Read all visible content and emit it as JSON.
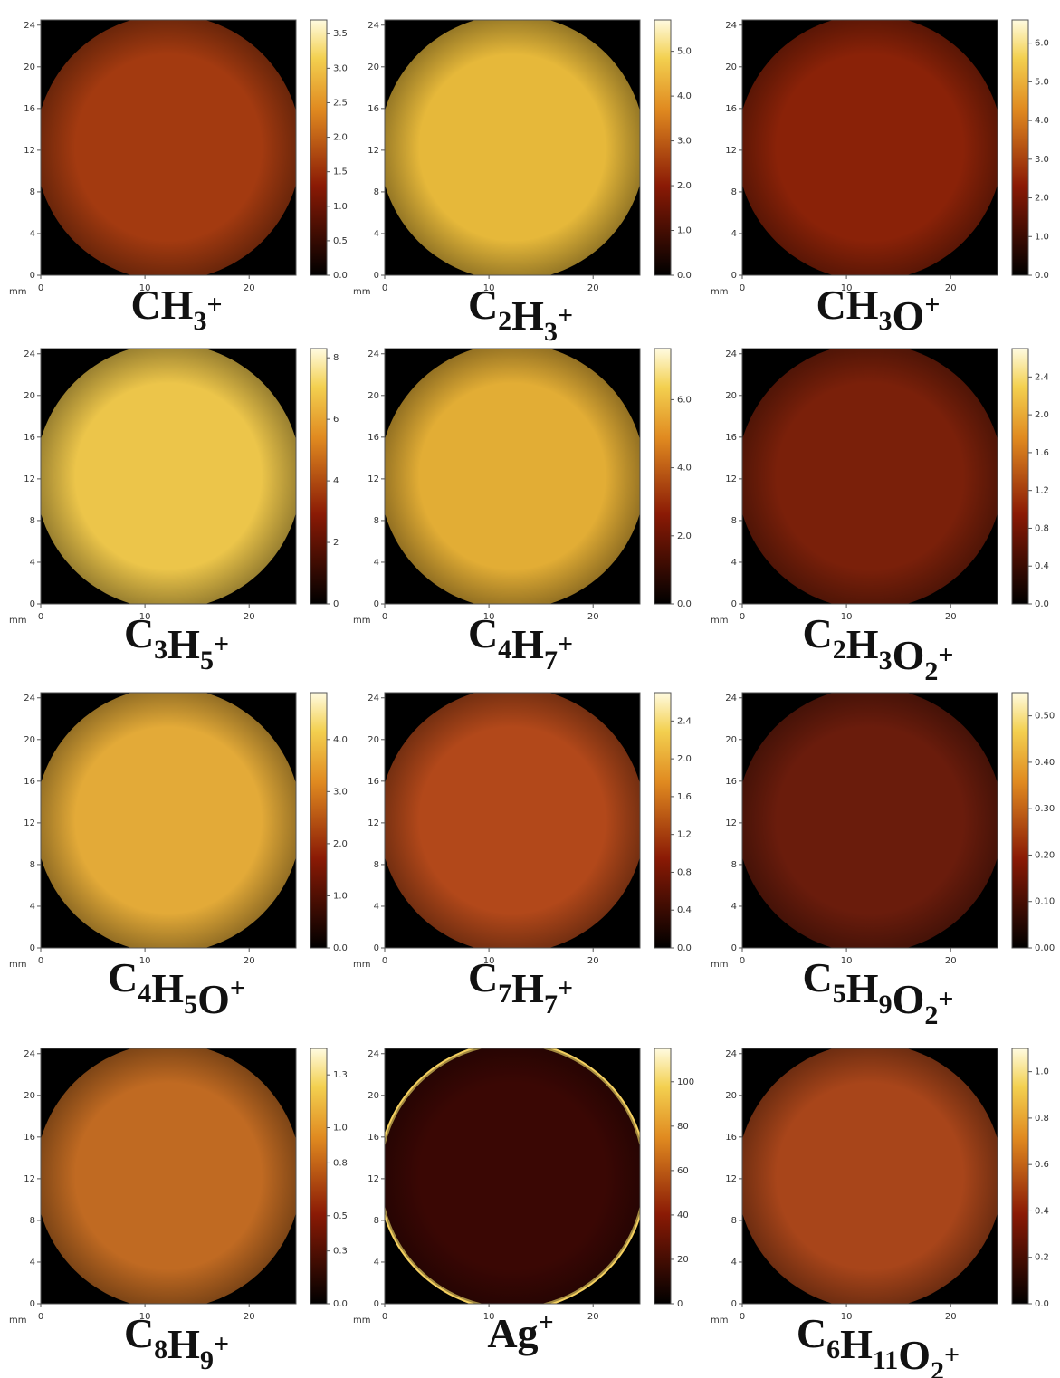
{
  "axes": {
    "unit": "mm",
    "xlim": [
      0,
      24.5
    ],
    "ylim": [
      0,
      24.5
    ],
    "xticks": [
      0,
      10,
      20
    ],
    "yticks": [
      0,
      4,
      8,
      12,
      16,
      20,
      24
    ]
  },
  "panels": [
    {
      "formula": [
        {
          "el": "CH",
          "n": "3"
        }
      ],
      "charge": "+",
      "fill": "#a33a10",
      "clim": [
        0,
        3.7
      ],
      "cticks": [
        {
          "value": 0,
          "label": "0.0"
        },
        0.5,
        {
          "value": 1,
          "label": "1.0"
        },
        1.5,
        {
          "value": 2,
          "label": "2.0"
        },
        2.5,
        {
          "value": 3,
          "label": "3.0"
        },
        3.5
      ]
    },
    {
      "formula": [
        {
          "el": "C",
          "n": "2"
        },
        {
          "el": "H",
          "n": "3"
        }
      ],
      "charge": "+",
      "fill": "#e6b83a",
      "clim": [
        0,
        5.7
      ],
      "cticks": [
        {
          "value": 0,
          "label": "0.0"
        },
        {
          "value": 1,
          "label": "1.0"
        },
        {
          "value": 2,
          "label": "2.0"
        },
        {
          "value": 3,
          "label": "3.0"
        },
        {
          "value": 4,
          "label": "4.0"
        },
        {
          "value": 5,
          "label": "5.0"
        }
      ]
    },
    {
      "formula": [
        {
          "el": "CH",
          "n": "3"
        },
        {
          "el": "O"
        }
      ],
      "charge": "+",
      "fill": "#8a2208",
      "clim": [
        0,
        6.6
      ],
      "cticks": [
        {
          "value": 0,
          "label": "0.0"
        },
        {
          "value": 1,
          "label": "1.0"
        },
        {
          "value": 2,
          "label": "2.0"
        },
        {
          "value": 3,
          "label": "3.0"
        },
        {
          "value": 4,
          "label": "4.0"
        },
        {
          "value": 5,
          "label": "5.0"
        },
        {
          "value": 6,
          "label": "6.0"
        }
      ]
    },
    {
      "formula": [
        {
          "el": "C",
          "n": "3"
        },
        {
          "el": "H",
          "n": "5"
        }
      ],
      "charge": "+",
      "fill": "#ecc54a",
      "clim": [
        0,
        8.3
      ],
      "cticks": [
        0,
        2,
        4,
        6,
        8
      ]
    },
    {
      "formula": [
        {
          "el": "C",
          "n": "4"
        },
        {
          "el": "H",
          "n": "7"
        }
      ],
      "charge": "+",
      "fill": "#e2ad35",
      "clim": [
        0,
        7.5
      ],
      "cticks": [
        {
          "value": 0,
          "label": "0.0"
        },
        {
          "value": 2,
          "label": "2.0"
        },
        {
          "value": 4,
          "label": "4.0"
        },
        {
          "value": 6,
          "label": "6.0"
        }
      ]
    },
    {
      "formula": [
        {
          "el": "C",
          "n": "2"
        },
        {
          "el": "H",
          "n": "3"
        },
        {
          "el": "O",
          "n": "2"
        }
      ],
      "charge": "+",
      "fill": "#7a200a",
      "clim": [
        0,
        2.7
      ],
      "cticks": [
        {
          "value": 0,
          "label": "0.0"
        },
        0.4,
        0.8,
        1.2,
        1.6,
        {
          "value": 2,
          "label": "2.0"
        },
        2.4
      ]
    },
    {
      "formula": [
        {
          "el": "C",
          "n": "4"
        },
        {
          "el": "H",
          "n": "5"
        },
        {
          "el": "O"
        }
      ],
      "charge": "+",
      "fill": "#e3aa38",
      "clim": [
        0,
        4.9
      ],
      "cticks": [
        {
          "value": 0,
          "label": "0.0"
        },
        {
          "value": 1,
          "label": "1.0"
        },
        {
          "value": 2,
          "label": "2.0"
        },
        {
          "value": 3,
          "label": "3.0"
        },
        {
          "value": 4,
          "label": "4.0"
        }
      ]
    },
    {
      "formula": [
        {
          "el": "C",
          "n": "7"
        },
        {
          "el": "H",
          "n": "7"
        }
      ],
      "charge": "+",
      "fill": "#b2481a",
      "clim": [
        0,
        2.7
      ],
      "cticks": [
        {
          "value": 0,
          "label": "0.0"
        },
        0.4,
        0.8,
        1.2,
        1.6,
        {
          "value": 2,
          "label": "2.0"
        },
        2.4
      ]
    },
    {
      "formula": [
        {
          "el": "C",
          "n": "5"
        },
        {
          "el": "H",
          "n": "9"
        },
        {
          "el": "O",
          "n": "2"
        }
      ],
      "charge": "+",
      "fill": "#6a1c0c",
      "clim": [
        0,
        0.55
      ],
      "cticks": [
        {
          "value": 0,
          "label": "0.00"
        },
        {
          "value": 0.1,
          "label": "0.10"
        },
        {
          "value": 0.2,
          "label": "0.20"
        },
        {
          "value": 0.3,
          "label": "0.30"
        },
        {
          "value": 0.4,
          "label": "0.40"
        },
        {
          "value": 0.5,
          "label": "0.50"
        }
      ]
    },
    {
      "formula": [
        {
          "el": "C",
          "n": "8"
        },
        {
          "el": "H",
          "n": "9"
        }
      ],
      "charge": "+",
      "fill": "#c06a22",
      "clim": [
        0,
        1.45
      ],
      "cticks": [
        {
          "value": 0,
          "label": "0.0"
        },
        0.3,
        0.5,
        0.8,
        {
          "value": 1,
          "label": "1.0"
        },
        1.3
      ]
    },
    {
      "formula": [
        {
          "el": "Ag"
        }
      ],
      "charge": "+",
      "fill": "#3a0704",
      "edge": "#f5d060",
      "clim": [
        0,
        115
      ],
      "cticks": [
        0,
        20,
        40,
        60,
        80,
        100
      ]
    },
    {
      "formula": [
        {
          "el": "C",
          "n": "6"
        },
        {
          "el": "H",
          "n": "11"
        },
        {
          "el": "O",
          "n": "2"
        }
      ],
      "charge": "+",
      "fill": "#a8451a",
      "clim": [
        0,
        1.1
      ],
      "cticks": [
        {
          "value": 0,
          "label": "0.0"
        },
        0.2,
        0.4,
        0.6,
        0.8,
        {
          "value": 1,
          "label": "1.0"
        }
      ]
    }
  ]
}
